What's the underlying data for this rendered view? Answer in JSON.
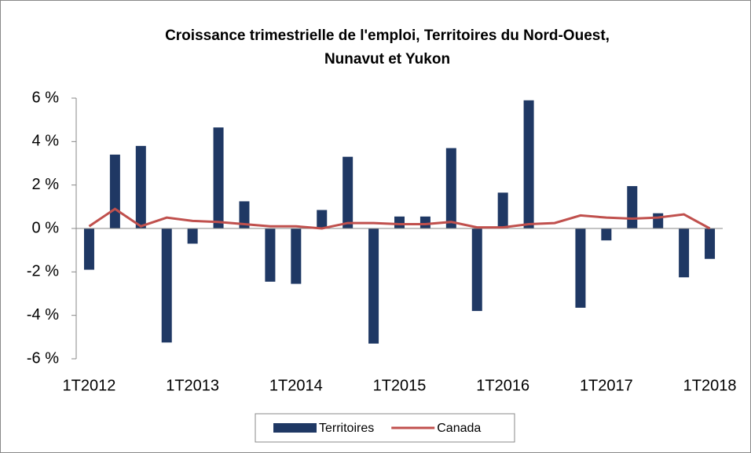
{
  "chart_data": {
    "type": "bar_line",
    "title": [
      "Croissance trimestrielle de l'emploi, Territoires du Nord-Ouest,",
      "Nunavut et Yukon"
    ],
    "categories": [
      "1T2012",
      null,
      null,
      null,
      "1T2013",
      null,
      null,
      null,
      "1T2014",
      null,
      null,
      null,
      "1T2015",
      null,
      null,
      null,
      "1T2016",
      null,
      null,
      null,
      "1T2017",
      null,
      null,
      null,
      "1T2018"
    ],
    "series": [
      {
        "name": "Territoires",
        "type": "bar",
        "color": "#1f3864",
        "values": [
          -1.9,
          3.4,
          3.8,
          -5.25,
          -0.7,
          4.65,
          1.25,
          -2.45,
          -2.55,
          0.85,
          3.3,
          -5.3,
          0.55,
          0.55,
          3.7,
          -3.8,
          1.65,
          5.9,
          0,
          -3.65,
          -0.55,
          1.95,
          0.7,
          -2.25,
          -1.4
        ]
      },
      {
        "name": "Canada",
        "type": "line",
        "color": "#c0504d",
        "values": [
          0.1,
          0.9,
          0.1,
          0.5,
          0.35,
          0.3,
          0.2,
          0.1,
          0.1,
          0.0,
          0.25,
          0.25,
          0.2,
          0.2,
          0.3,
          0.05,
          0.05,
          0.2,
          0.25,
          0.6,
          0.5,
          0.45,
          0.5,
          0.65,
          0.0
        ]
      }
    ],
    "ylim": [
      -6,
      6
    ],
    "yticks": [
      {
        "value": -6,
        "label": "-6 %"
      },
      {
        "value": -4,
        "label": "-4 %"
      },
      {
        "value": -2,
        "label": "-2 %"
      },
      {
        "value": 0,
        "label": "0 %"
      },
      {
        "value": 2,
        "label": "2 %"
      },
      {
        "value": 4,
        "label": "4 %"
      },
      {
        "value": 6,
        "label": "6 %"
      }
    ],
    "grid": false,
    "legend": "bottom"
  }
}
